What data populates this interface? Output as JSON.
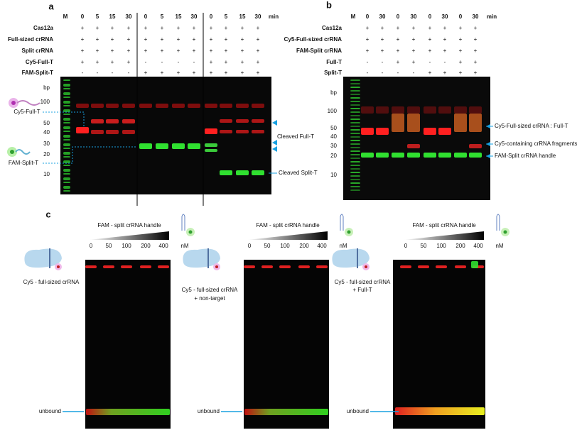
{
  "panel_a": {
    "label": "a",
    "header": [
      "M",
      "0",
      "5",
      "15",
      "30",
      "0",
      "5",
      "15",
      "30",
      "0",
      "5",
      "15",
      "30",
      "min"
    ],
    "rows": [
      {
        "name": "Cas12a",
        "signs": [
          "+",
          "+",
          "+",
          "+",
          "+",
          "+",
          "+",
          "+",
          "+",
          "+",
          "+",
          "+"
        ]
      },
      {
        "name": "Full-sized crRNA",
        "signs": [
          "+",
          "+",
          "+",
          "+",
          "+",
          "+",
          "+",
          "+",
          "+",
          "+",
          "+",
          "+"
        ]
      },
      {
        "name": "Split crRNA",
        "signs": [
          "+",
          "+",
          "+",
          "+",
          "+",
          "+",
          "+",
          "+",
          "+",
          "+",
          "+",
          "+"
        ]
      },
      {
        "name": "Cy5-Full-T",
        "signs": [
          "+",
          "+",
          "+",
          "+",
          "-",
          "-",
          "-",
          "-",
          "+",
          "+",
          "+",
          "+"
        ]
      },
      {
        "name": "FAM-Split-T",
        "signs": [
          "-",
          "-",
          "-",
          "-",
          "+",
          "+",
          "+",
          "+",
          "+",
          "+",
          "+",
          "+"
        ]
      }
    ],
    "bp": [
      "bp",
      "100",
      "50",
      "40",
      "30",
      "20",
      "10"
    ],
    "left_annotations": [
      "Cy5-Full-T",
      "FAM-Split-T"
    ],
    "right_annotations": [
      "Cleaved Full-T",
      "Cleaved Split-T"
    ]
  },
  "panel_b": {
    "label": "b",
    "header": [
      "M",
      "0",
      "30",
      "0",
      "30",
      "0",
      "30",
      "0",
      "30",
      "min"
    ],
    "rows": [
      {
        "name": "Cas12a",
        "signs": [
          "+",
          "+",
          "+",
          "+",
          "+",
          "+",
          "+",
          "+"
        ]
      },
      {
        "name": "Cy5-Full-sized crRNA",
        "signs": [
          "+",
          "+",
          "+",
          "+",
          "+",
          "+",
          "+",
          "+"
        ]
      },
      {
        "name": "FAM-Split crRNA",
        "signs": [
          "+",
          "+",
          "+",
          "+",
          "+",
          "+",
          "+",
          "+"
        ]
      },
      {
        "name": "Full-T",
        "signs": [
          "-",
          "-",
          "+",
          "+",
          "-",
          "-",
          "+",
          "+"
        ]
      },
      {
        "name": "Split-T",
        "signs": [
          "-",
          "-",
          "-",
          "-",
          "+",
          "+",
          "+",
          "+"
        ]
      }
    ],
    "bp": [
      "bp",
      "100",
      "50",
      "40",
      "30",
      "20",
      "10"
    ],
    "right_annotations": [
      "Cy5-Full-sized crRNA : Full-T",
      "Cy5-containing crRNA fragments",
      "FAM-Split crRNA handle"
    ]
  },
  "panel_c": {
    "label": "c",
    "subpanels": [
      {
        "title": "FAM - split crRNA handle",
        "concentrations": [
          "0",
          "50",
          "100",
          "200",
          "400"
        ],
        "unit": "nM",
        "sample": [
          "Cy5 - full-sized crRNA"
        ],
        "unbound": "unbound"
      },
      {
        "title": "FAM - split crRNA handle",
        "concentrations": [
          "0",
          "50",
          "100",
          "200",
          "400"
        ],
        "unit": "nM",
        "sample": [
          "Cy5 - full-sized crRNA",
          "+ non-target"
        ],
        "unbound": "unbound"
      },
      {
        "title": "FAM - split crRNA handle",
        "concentrations": [
          "0",
          "50",
          "100",
          "200",
          "400"
        ],
        "unit": "nM",
        "sample": [
          "Cy5 - full-sized crRNA",
          "+ Full-T"
        ],
        "unbound": "unbound"
      }
    ]
  }
}
